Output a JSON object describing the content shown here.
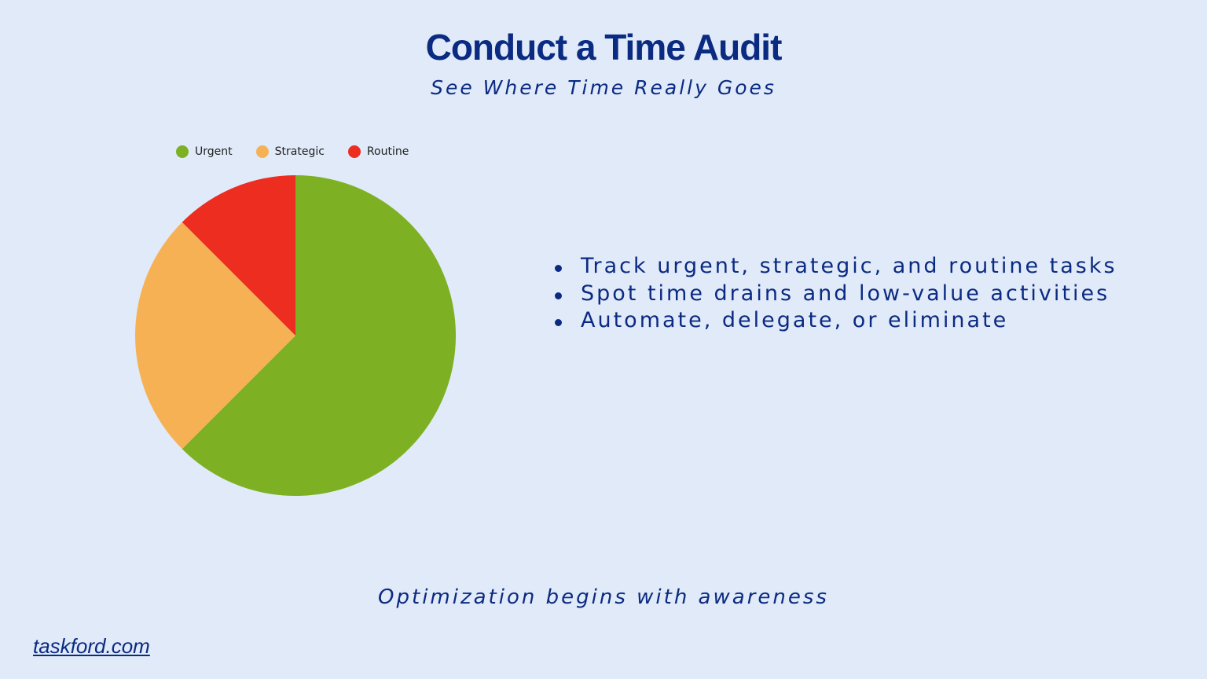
{
  "header": {
    "title": "Conduct a Time Audit",
    "subtitle": "See Where Time Really Goes"
  },
  "chart_data": {
    "type": "pie",
    "categories": [
      "Urgent",
      "Strategic",
      "Routine"
    ],
    "values": [
      62.5,
      25,
      12.5
    ],
    "colors": [
      "#7DB022",
      "#F7B155",
      "#EC2D1F"
    ],
    "legend_position": "top-left"
  },
  "bullets": [
    "Track urgent, strategic, and routine tasks",
    "Spot time drains and low-value activities",
    "Automate, delegate, or eliminate"
  ],
  "tagline": "Optimization begins with awareness",
  "footer": {
    "link": "taskford.com"
  }
}
